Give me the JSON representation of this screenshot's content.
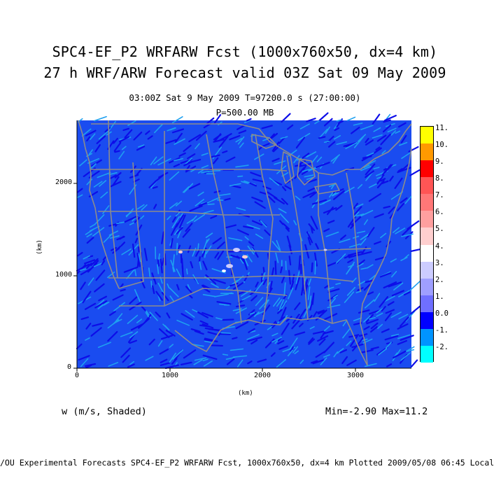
{
  "header": {
    "title_line1": "SPC4-EF_P2 WRFARW Fcst (1000x760x50, dx=4 km)",
    "title_line2": "27 h WRF/ARW Forecast valid 03Z Sat 09 May 2009",
    "subtitle_time": "03:00Z Sat  9 May 2009    T=97200.0 s (27:00:00)",
    "subtitle_level": "P=500.00 MB"
  },
  "map": {
    "x_axis": {
      "label": "(km)",
      "ticks": [
        "0",
        "1000",
        "2000",
        "3000"
      ]
    },
    "y_axis": {
      "label": "(km)",
      "ticks": [
        "0",
        "1000",
        "2000"
      ]
    },
    "colors": {
      "background_field": "#1a4cf0",
      "streak": "#0d0de8",
      "light_streak": "#1ea0f0",
      "boundaries": "#8c8c8c"
    }
  },
  "colorbar": {
    "levels": [
      {
        "label": "11.",
        "color": "#ffff00"
      },
      {
        "label": "10.",
        "color": "#ff9900"
      },
      {
        "label": "9.",
        "color": "#ff0000"
      },
      {
        "label": "8.",
        "color": "#ff5555"
      },
      {
        "label": "7.",
        "color": "#ff7777"
      },
      {
        "label": "6.",
        "color": "#ff9f9f"
      },
      {
        "label": "5.",
        "color": "#ffcfcf"
      },
      {
        "label": "4.",
        "color": "#ffffff"
      },
      {
        "label": "3.",
        "color": "#ccccff"
      },
      {
        "label": "2.",
        "color": "#9f9fff"
      },
      {
        "label": "1.",
        "color": "#6f6fff"
      },
      {
        "label": "0.0",
        "color": "#0000ff"
      },
      {
        "label": "-1.",
        "color": "#0094ff"
      },
      {
        "label": "-2.",
        "color": "#00ffff"
      }
    ]
  },
  "legend": {
    "field_label": "w (m/s, Shaded)",
    "min_max": "Min=-2.90 Max=11.2"
  },
  "footer": {
    "text": "/OU Experimental Forecasts  SPC4-EF_P2 WRFARW Fcst, 1000x760x50, dx=4 km  Plotted 2009/05/08 06:45 Local"
  }
}
